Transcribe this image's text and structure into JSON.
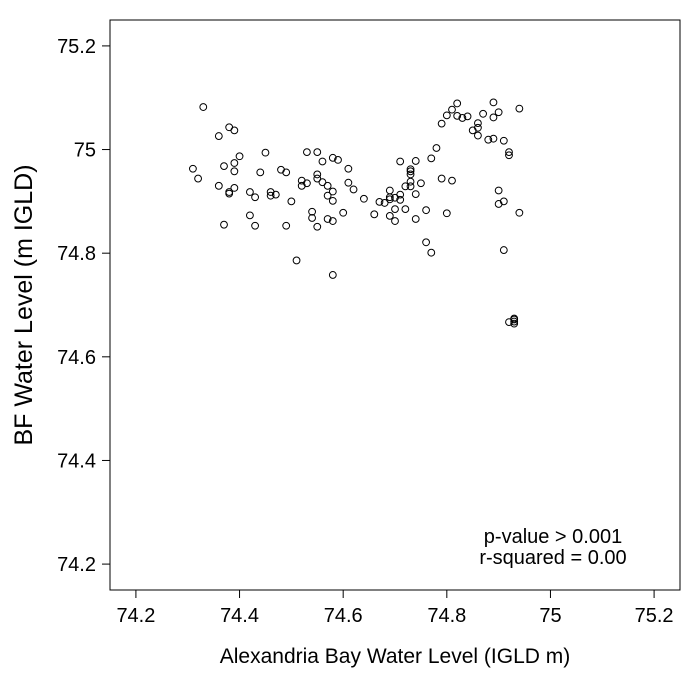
{
  "chart_data": {
    "type": "scatter",
    "title": "",
    "xlabel": "Alexandria Bay Water Level (IGLD m)",
    "ylabel": "BF Water Level (m IGLD)",
    "xlim": [
      74.15,
      75.25
    ],
    "ylim": [
      74.15,
      75.25
    ],
    "x_ticks": [
      74.2,
      74.4,
      74.6,
      74.8,
      75.0,
      75.2
    ],
    "x_tick_labels": [
      "74.2",
      "74.4",
      "74.6",
      "74.8",
      "75",
      "75.2"
    ],
    "y_ticks": [
      74.2,
      74.4,
      74.6,
      74.8,
      75.0,
      75.2
    ],
    "y_tick_labels": [
      "74.2",
      "74.4",
      "74.6",
      "74.8",
      "75",
      "75.2"
    ],
    "grid": false,
    "marker": "open-circle",
    "annotations": [
      "p-value > 0.001",
      "r-squared = 0.00"
    ],
    "points": [
      [
        74.31,
        74.963
      ],
      [
        74.32,
        74.944
      ],
      [
        74.33,
        75.082
      ],
      [
        74.36,
        75.026
      ],
      [
        74.36,
        74.93
      ],
      [
        74.37,
        74.855
      ],
      [
        74.37,
        74.968
      ],
      [
        74.38,
        74.915
      ],
      [
        74.38,
        75.043
      ],
      [
        74.38,
        74.918
      ],
      [
        74.39,
        75.037
      ],
      [
        74.39,
        74.958
      ],
      [
        74.39,
        74.974
      ],
      [
        74.39,
        74.926
      ],
      [
        74.4,
        74.987
      ],
      [
        74.42,
        74.873
      ],
      [
        74.42,
        74.918
      ],
      [
        74.43,
        74.908
      ],
      [
        74.43,
        74.853
      ],
      [
        74.44,
        74.956
      ],
      [
        74.45,
        74.994
      ],
      [
        74.46,
        74.918
      ],
      [
        74.46,
        74.911
      ],
      [
        74.47,
        74.913
      ],
      [
        74.48,
        74.961
      ],
      [
        74.49,
        74.956
      ],
      [
        74.49,
        74.853
      ],
      [
        74.5,
        74.9
      ],
      [
        74.51,
        74.786
      ],
      [
        74.52,
        74.93
      ],
      [
        74.52,
        74.94
      ],
      [
        74.53,
        74.935
      ],
      [
        74.53,
        74.995
      ],
      [
        74.54,
        74.868
      ],
      [
        74.54,
        74.88
      ],
      [
        74.55,
        74.995
      ],
      [
        74.55,
        74.944
      ],
      [
        74.55,
        74.952
      ],
      [
        74.55,
        74.851
      ],
      [
        74.56,
        74.977
      ],
      [
        74.56,
        74.937
      ],
      [
        74.57,
        74.93
      ],
      [
        74.57,
        74.866
      ],
      [
        74.57,
        74.911
      ],
      [
        74.58,
        74.984
      ],
      [
        74.58,
        74.901
      ],
      [
        74.58,
        74.919
      ],
      [
        74.58,
        74.862
      ],
      [
        74.58,
        74.758
      ],
      [
        74.59,
        74.98
      ],
      [
        74.6,
        74.878
      ],
      [
        74.61,
        74.963
      ],
      [
        74.61,
        74.936
      ],
      [
        74.62,
        74.923
      ],
      [
        74.64,
        74.905
      ],
      [
        74.66,
        74.875
      ],
      [
        74.67,
        74.899
      ],
      [
        74.68,
        74.897
      ],
      [
        74.69,
        74.904
      ],
      [
        74.69,
        74.921
      ],
      [
        74.69,
        74.872
      ],
      [
        74.69,
        74.908
      ],
      [
        74.7,
        74.862
      ],
      [
        74.7,
        74.885
      ],
      [
        74.7,
        74.907
      ],
      [
        74.71,
        74.977
      ],
      [
        74.71,
        74.903
      ],
      [
        74.71,
        74.913
      ],
      [
        74.72,
        74.885
      ],
      [
        74.72,
        74.929
      ],
      [
        74.73,
        74.929
      ],
      [
        74.73,
        74.952
      ],
      [
        74.73,
        74.958
      ],
      [
        74.73,
        74.962
      ],
      [
        74.73,
        74.938
      ],
      [
        74.74,
        74.978
      ],
      [
        74.74,
        74.866
      ],
      [
        74.74,
        74.914
      ],
      [
        74.75,
        74.935
      ],
      [
        74.76,
        74.883
      ],
      [
        74.76,
        74.821
      ],
      [
        74.77,
        74.801
      ],
      [
        74.77,
        74.983
      ],
      [
        74.78,
        75.003
      ],
      [
        74.79,
        75.05
      ],
      [
        74.79,
        74.944
      ],
      [
        74.8,
        75.066
      ],
      [
        74.8,
        74.877
      ],
      [
        74.81,
        75.077
      ],
      [
        74.81,
        74.94
      ],
      [
        74.82,
        75.089
      ],
      [
        74.82,
        75.065
      ],
      [
        74.83,
        75.061
      ],
      [
        74.84,
        75.064
      ],
      [
        74.85,
        75.037
      ],
      [
        74.86,
        75.042
      ],
      [
        74.86,
        75.051
      ],
      [
        74.86,
        75.027
      ],
      [
        74.87,
        75.069
      ],
      [
        74.88,
        75.019
      ],
      [
        74.89,
        75.091
      ],
      [
        74.89,
        75.062
      ],
      [
        74.89,
        75.021
      ],
      [
        74.9,
        74.895
      ],
      [
        74.9,
        74.921
      ],
      [
        74.9,
        75.072
      ],
      [
        74.91,
        75.017
      ],
      [
        74.91,
        74.9
      ],
      [
        74.91,
        74.806
      ],
      [
        74.92,
        74.989
      ],
      [
        74.92,
        74.667
      ],
      [
        74.92,
        74.995
      ],
      [
        74.93,
        74.668
      ],
      [
        74.93,
        74.672
      ],
      [
        74.93,
        74.674
      ],
      [
        74.93,
        74.664
      ],
      [
        74.94,
        75.079
      ],
      [
        74.94,
        74.878
      ]
    ]
  }
}
